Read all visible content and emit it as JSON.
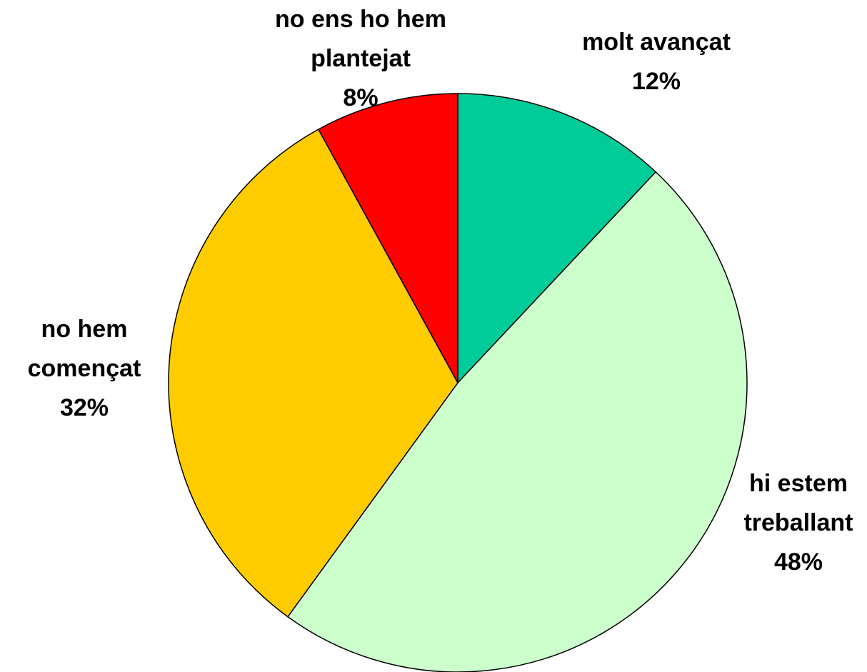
{
  "chart_data": {
    "type": "pie",
    "categories": [
      "molt avançat",
      "hi estem treballant",
      "no hem començat",
      "no ens ho hem plantejat"
    ],
    "values": [
      12,
      48,
      32,
      8
    ],
    "value_labels": [
      "12%",
      "48%",
      "32%",
      "8%"
    ],
    "colors": [
      "#00cc99",
      "#ccffcc",
      "#ffcc00",
      "#ff0000"
    ]
  }
}
